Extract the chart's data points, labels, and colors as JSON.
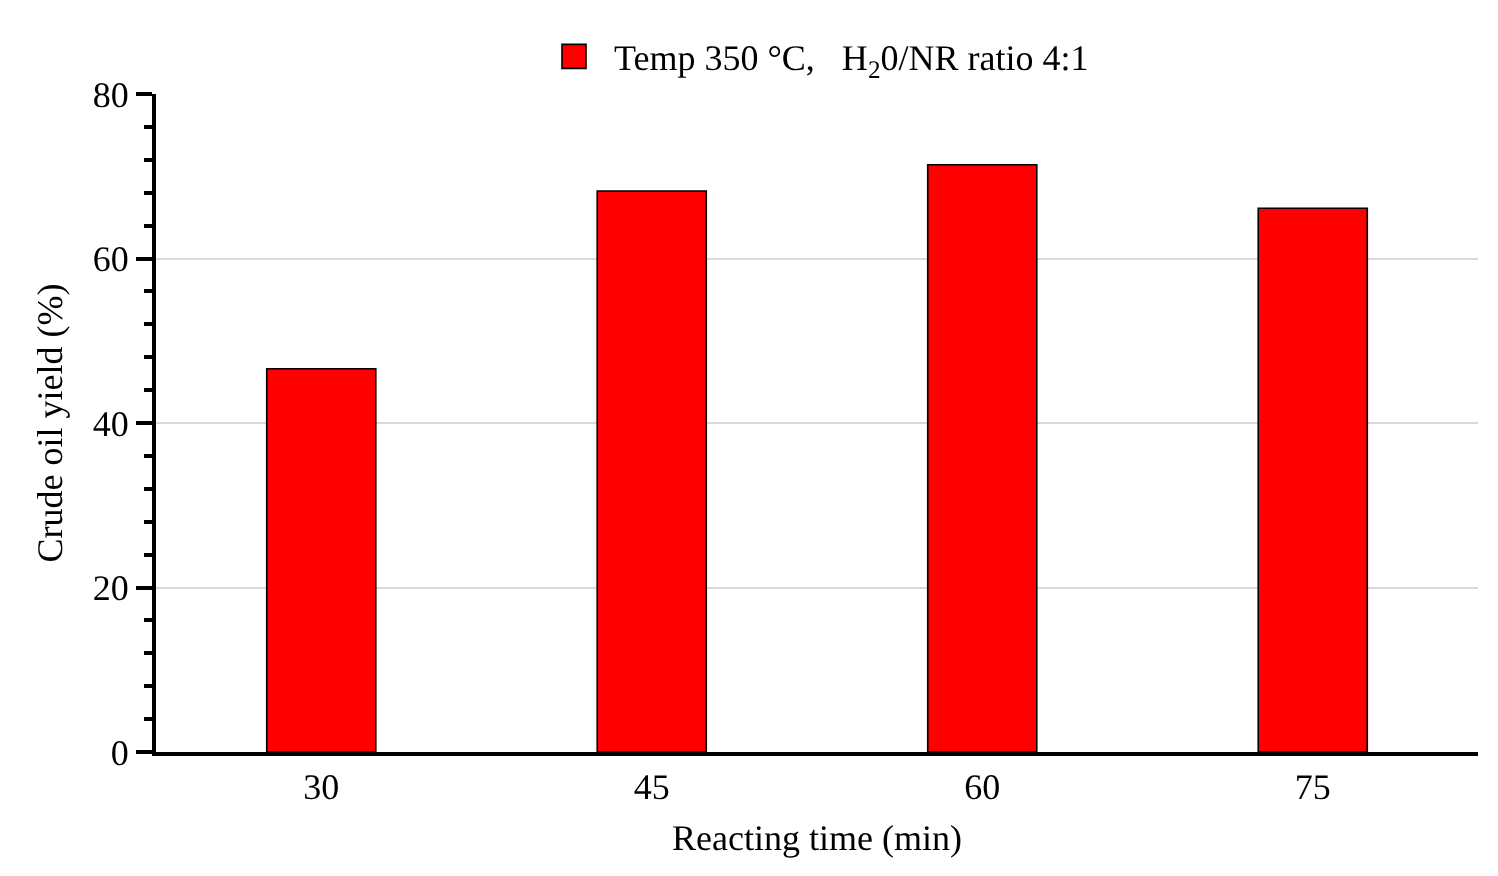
{
  "chart_data": {
    "type": "bar",
    "categories": [
      "30",
      "45",
      "60",
      "75"
    ],
    "series": [
      {
        "name": "Temp 350 °C,   H$_{2}$0/NR ratio 4:1",
        "color": "#ff0000",
        "values": [
          46.6,
          68.2,
          71.4,
          66.1
        ]
      }
    ],
    "xlabel": "Reacting time (min)",
    "ylabel": "Crude oil yield (%)",
    "ylim": [
      0,
      80
    ],
    "yticks": [
      0,
      20,
      40,
      60,
      80
    ],
    "grid": "y",
    "legend": "top"
  }
}
